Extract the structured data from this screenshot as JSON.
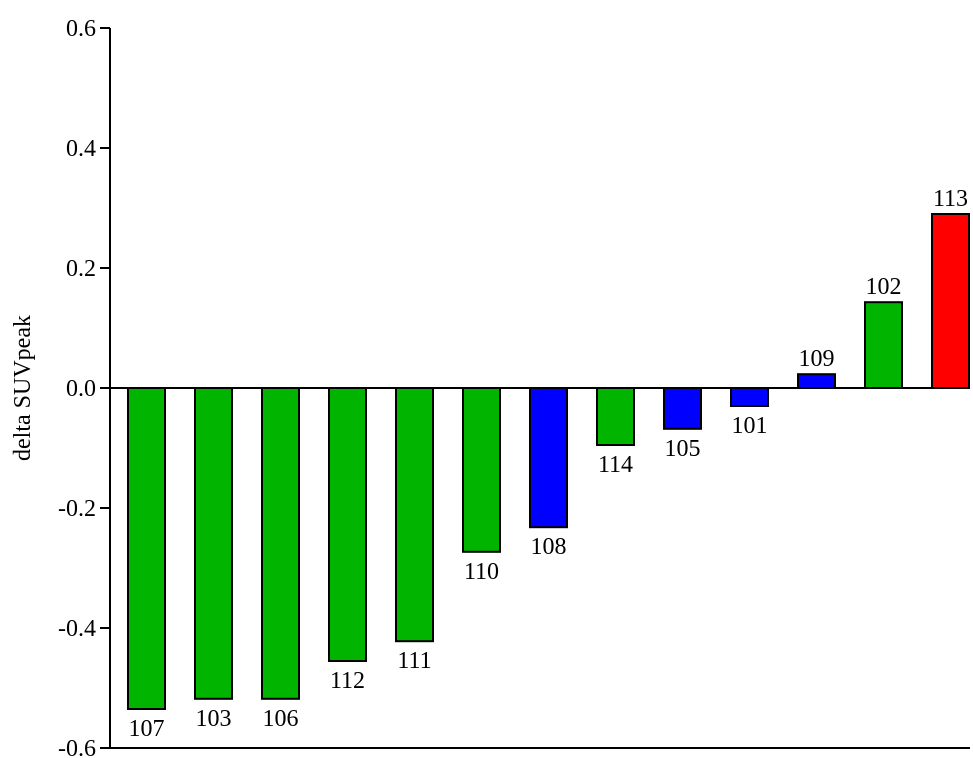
{
  "chart_data": {
    "type": "bar",
    "title": "",
    "xlabel": "",
    "ylabel": "delta SUVpeak",
    "ylim": [
      -0.6,
      0.6
    ],
    "yticks": [
      "0.6",
      "0.4",
      "0.2",
      "0.0",
      "-0.2",
      "-0.4",
      "-0.6"
    ],
    "ytick_values": [
      0.6,
      0.4,
      0.2,
      0.0,
      -0.2,
      -0.4,
      -0.6
    ],
    "grid": false,
    "categories": [
      "107",
      "103",
      "106",
      "112",
      "111",
      "110",
      "108",
      "114",
      "105",
      "101",
      "109",
      "102",
      "113"
    ],
    "values": [
      -0.535,
      -0.518,
      -0.518,
      -0.455,
      -0.422,
      -0.273,
      -0.232,
      -0.095,
      -0.068,
      -0.03,
      0.023,
      0.143,
      0.29
    ],
    "colors": [
      "#00b400",
      "#00b400",
      "#00b400",
      "#00b400",
      "#00b400",
      "#00b400",
      "#0000ff",
      "#00b400",
      "#0000ff",
      "#0000ff",
      "#0000ff",
      "#00b400",
      "#ff0000"
    ]
  }
}
